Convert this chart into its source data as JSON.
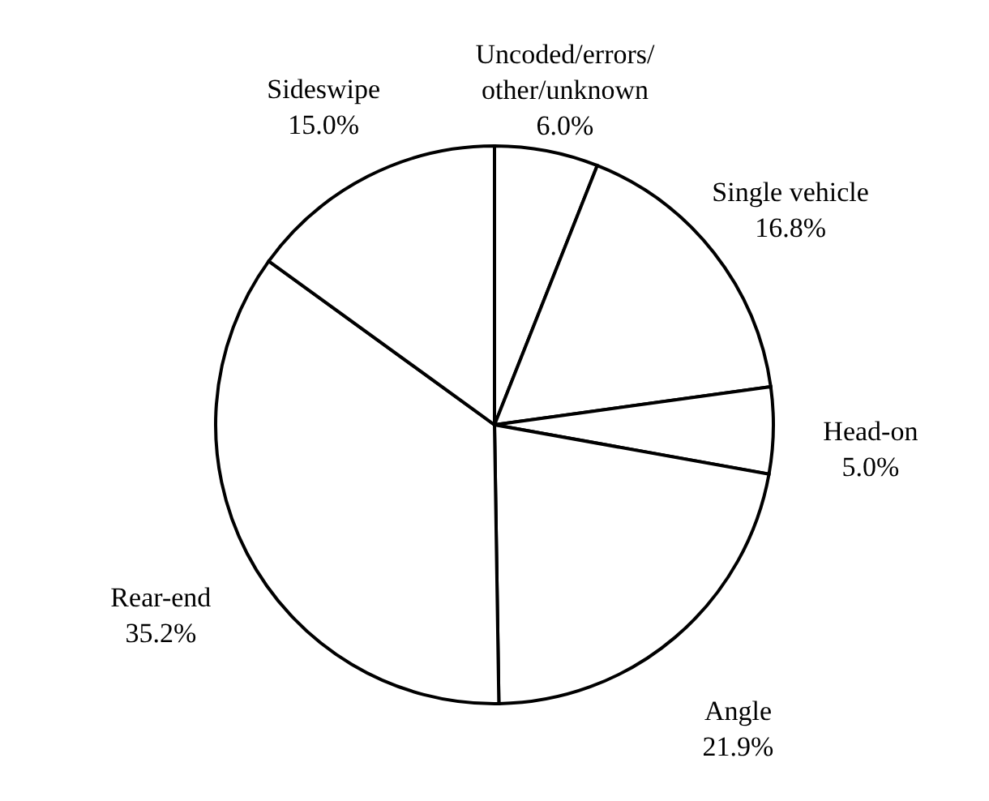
{
  "chart_data": {
    "type": "pie",
    "categories": [
      "Uncoded/errors/\nother/unknown",
      "Single vehicle",
      "Head-on",
      "Angle",
      "Rear-end",
      "Sideswipe"
    ],
    "values": [
      6.0,
      16.8,
      5.0,
      21.9,
      35.2,
      15.0
    ],
    "colors": [
      "#ffffff",
      "#ffffff",
      "#ffffff",
      "#ffffff",
      "#ffffff",
      "#ffffff"
    ],
    "value_labels": [
      "6.0%",
      "16.8%",
      "5.0%",
      "21.9%",
      "35.2%",
      "15.0%"
    ]
  }
}
